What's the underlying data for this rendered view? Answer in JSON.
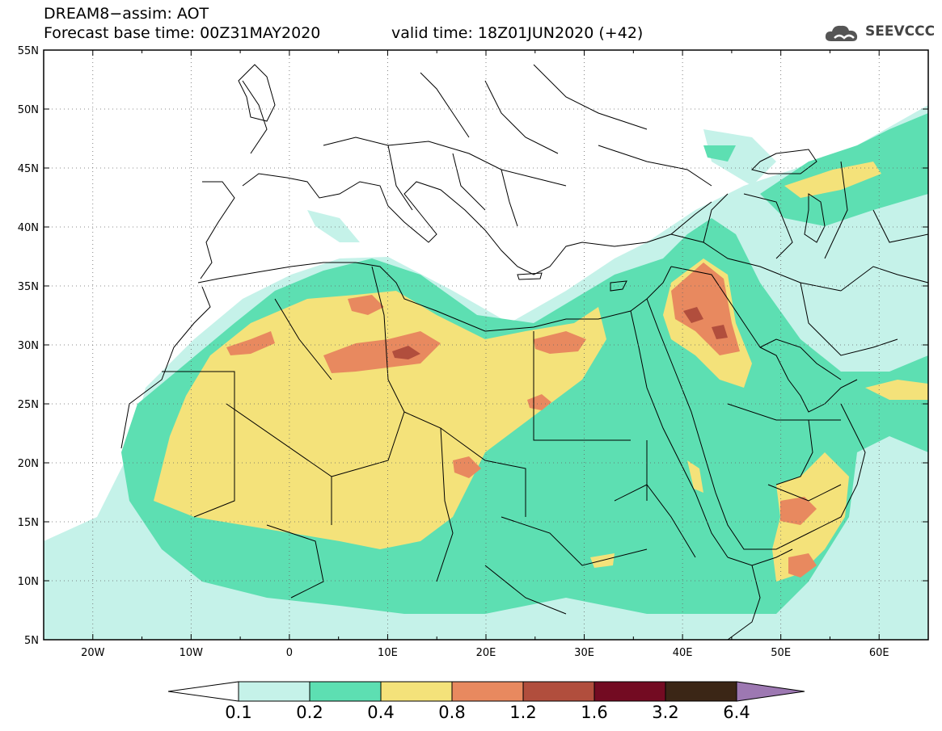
{
  "title": {
    "line1": "DREAM8−assim: AOT",
    "line2": "Forecast base time: 00Z31MAY2020",
    "valid": "valid time: 18Z01JUN2020 (+42)"
  },
  "logo": {
    "text": "SEEVCCC",
    "icon": "cloud-icon"
  },
  "map": {
    "lon_range": [
      -25,
      65
    ],
    "lat_range": [
      5,
      55
    ],
    "lat_labels": [
      "5N",
      "10N",
      "15N",
      "20N",
      "25N",
      "30N",
      "35N",
      "40N",
      "45N",
      "50N",
      "55N"
    ],
    "lon_labels": [
      "20W",
      "10W",
      "0",
      "10E",
      "20E",
      "30E",
      "40E",
      "50E",
      "60E"
    ],
    "colors": {
      "c1": "#c5f2e9",
      "c2": "#5ddfb2",
      "c3": "#f4e27a",
      "c4": "#e8895f",
      "c5": "#b14e3d",
      "c6": "#730b22",
      "c7": "#3b2616",
      "c8": "#9d78b2"
    }
  },
  "colorbar": {
    "levels": [
      "0.1",
      "0.2",
      "0.4",
      "0.8",
      "1.2",
      "1.6",
      "3.2",
      "6.4"
    ],
    "colors": [
      "#ffffff",
      "#c5f2e9",
      "#5ddfb2",
      "#f4e27a",
      "#e8895f",
      "#b14e3d",
      "#730b22",
      "#3b2616",
      "#9d78b2"
    ]
  }
}
